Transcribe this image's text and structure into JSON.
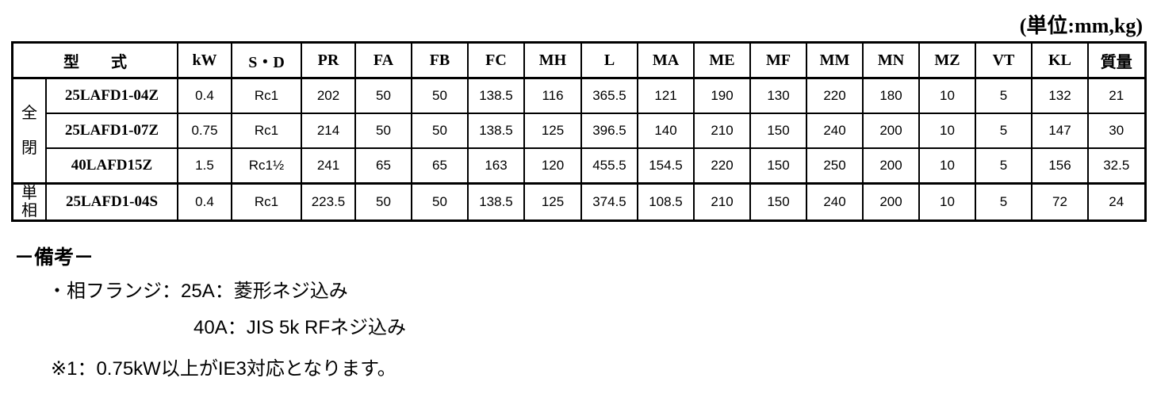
{
  "unit_label": "(単位:mm,kg)",
  "table": {
    "headers": [
      "型　　式",
      "kW",
      "S・D",
      "PR",
      "FA",
      "FB",
      "FC",
      "MH",
      "L",
      "MA",
      "ME",
      "MF",
      "MM",
      "MN",
      "MZ",
      "VT",
      "KL",
      "質量"
    ],
    "groups": [
      {
        "label": "全\n\n閉",
        "rows": [
          [
            "25LAFD1-04Z",
            "0.4",
            "Rc1",
            "202",
            "50",
            "50",
            "138.5",
            "116",
            "365.5",
            "121",
            "190",
            "130",
            "220",
            "180",
            "10",
            "5",
            "132",
            "21"
          ],
          [
            "25LAFD1-07Z",
            "0.75",
            "Rc1",
            "214",
            "50",
            "50",
            "138.5",
            "125",
            "396.5",
            "140",
            "210",
            "150",
            "240",
            "200",
            "10",
            "5",
            "147",
            "30"
          ],
          [
            "40LAFD15Z",
            "1.5",
            "Rc1½",
            "241",
            "65",
            "65",
            "163",
            "120",
            "455.5",
            "154.5",
            "220",
            "150",
            "250",
            "200",
            "10",
            "5",
            "156",
            "32.5"
          ]
        ]
      },
      {
        "label": "単\n相",
        "rows": [
          [
            "25LAFD1-04S",
            "0.4",
            "Rc1",
            "223.5",
            "50",
            "50",
            "138.5",
            "125",
            "374.5",
            "108.5",
            "210",
            "150",
            "240",
            "200",
            "10",
            "5",
            "72",
            "24"
          ]
        ]
      }
    ]
  },
  "remarks": {
    "title": "－備考－",
    "line1": "・相フランジ：25A：菱形ネジ込み",
    "line2": "40A：JIS 5k RFネジ込み",
    "line3": "※1：0.75kW以上がIE3対応となります。"
  }
}
